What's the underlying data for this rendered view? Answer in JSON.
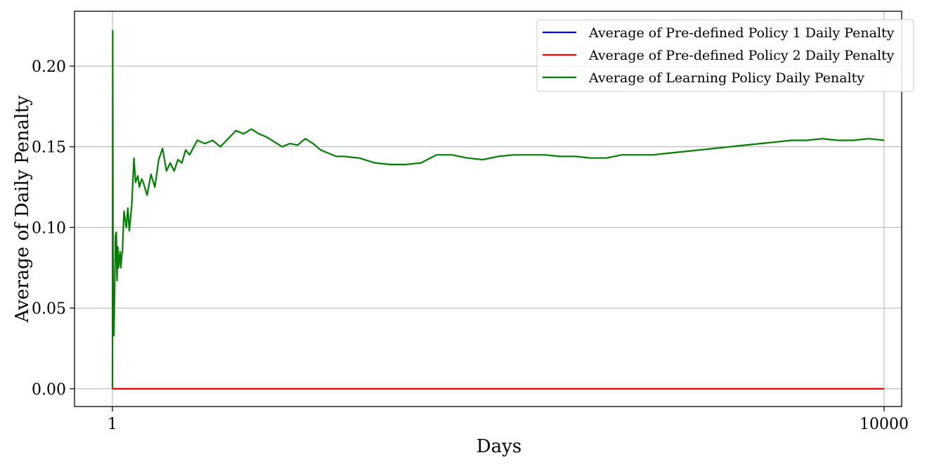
{
  "chart_data": {
    "type": "line",
    "title": "",
    "xlabel": "Days",
    "ylabel": "Average of Daily Penalty",
    "xlim": [
      1,
      10000
    ],
    "ylim": [
      -0.011,
      0.234
    ],
    "x_ticks": [
      1,
      10000
    ],
    "x_tick_labels": [
      "1",
      "10000"
    ],
    "y_ticks": [
      0.0,
      0.05,
      0.1,
      0.15,
      0.2
    ],
    "y_tick_labels": [
      "0.00",
      "0.05",
      "0.10",
      "0.15",
      "0.20"
    ],
    "grid": true,
    "legend_position": "top-right",
    "series": [
      {
        "name": "Average of Pre-defined Policy 1 Daily Penalty",
        "color": "#0000ff",
        "x": [
          1,
          10000
        ],
        "y": [
          0.0,
          0.0
        ]
      },
      {
        "name": "Average of Pre-defined Policy 2 Daily Penalty",
        "color": "#ff0000",
        "x": [
          1,
          10000
        ],
        "y": [
          0.0,
          0.0
        ]
      },
      {
        "name": "Average of Learning Policy Daily Penalty",
        "color": "#008000",
        "x": [
          1,
          5,
          10,
          20,
          40,
          50,
          60,
          70,
          80,
          100,
          110,
          120,
          130,
          150,
          180,
          200,
          220,
          250,
          280,
          300,
          330,
          350,
          380,
          400,
          450,
          500,
          550,
          600,
          650,
          700,
          750,
          800,
          850,
          900,
          950,
          1000,
          1100,
          1200,
          1300,
          1400,
          1500,
          1600,
          1700,
          1800,
          1900,
          2000,
          2100,
          2200,
          2300,
          2400,
          2500,
          2600,
          2700,
          2800,
          2900,
          3000,
          3200,
          3400,
          3600,
          3800,
          4000,
          4200,
          4400,
          4600,
          4800,
          5000,
          5200,
          5400,
          5600,
          5800,
          6000,
          6200,
          6400,
          6600,
          6800,
          7000,
          7200,
          7400,
          7600,
          7800,
          8000,
          8200,
          8400,
          8600,
          8800,
          9000,
          9200,
          9400,
          9600,
          9800,
          10000
        ],
        "y": [
          0.0,
          0.222,
          0.04,
          0.033,
          0.095,
          0.097,
          0.067,
          0.088,
          0.075,
          0.085,
          0.075,
          0.082,
          0.085,
          0.11,
          0.1,
          0.112,
          0.098,
          0.113,
          0.143,
          0.128,
          0.132,
          0.125,
          0.13,
          0.128,
          0.12,
          0.133,
          0.125,
          0.142,
          0.149,
          0.135,
          0.14,
          0.135,
          0.142,
          0.14,
          0.148,
          0.145,
          0.154,
          0.152,
          0.154,
          0.15,
          0.155,
          0.16,
          0.158,
          0.161,
          0.158,
          0.156,
          0.153,
          0.15,
          0.152,
          0.151,
          0.155,
          0.152,
          0.148,
          0.146,
          0.144,
          0.144,
          0.143,
          0.14,
          0.139,
          0.139,
          0.14,
          0.145,
          0.145,
          0.143,
          0.142,
          0.144,
          0.145,
          0.145,
          0.145,
          0.144,
          0.144,
          0.143,
          0.143,
          0.145,
          0.145,
          0.145,
          0.146,
          0.147,
          0.148,
          0.149,
          0.15,
          0.151,
          0.152,
          0.153,
          0.154,
          0.154,
          0.155,
          0.154,
          0.154,
          0.155,
          0.154
        ]
      }
    ]
  }
}
